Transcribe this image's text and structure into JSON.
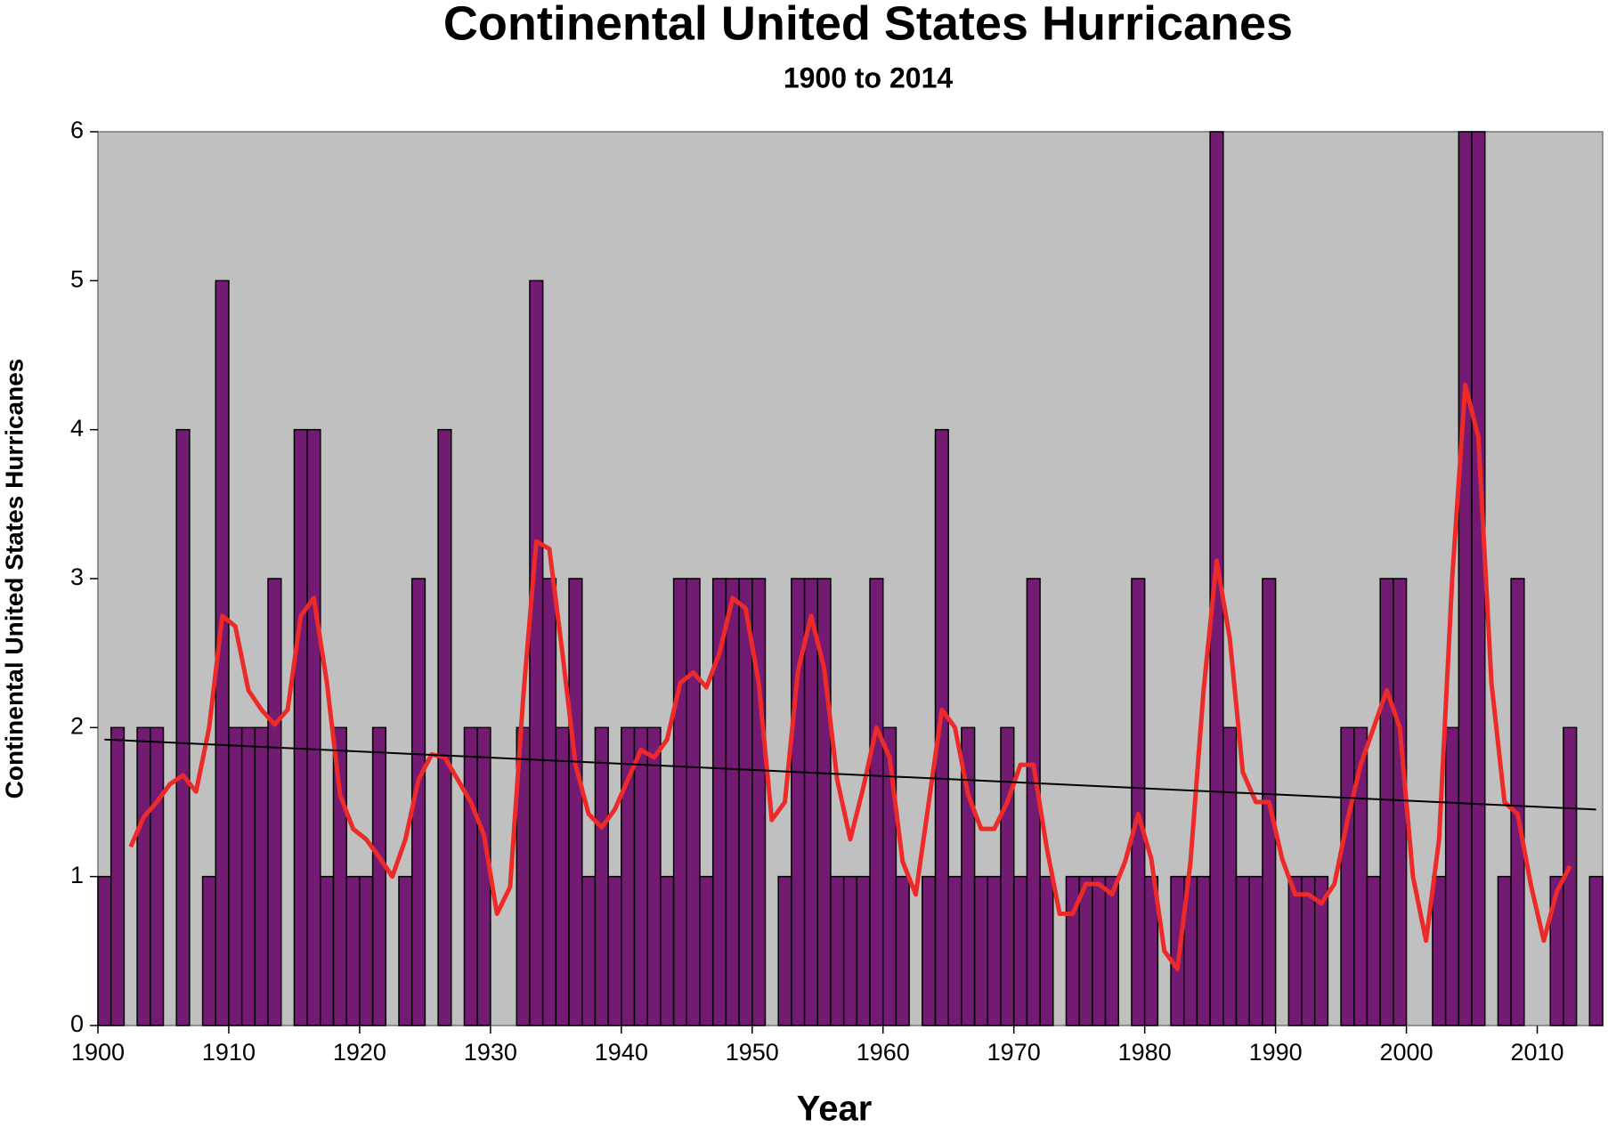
{
  "chart_data": {
    "type": "bar",
    "title": "Continental United States Hurricanes",
    "subtitle": "1900 to 2014",
    "x_label": "Year",
    "y_label": "Continental United States Hurricanes",
    "plot_background": "#c0c0c0",
    "xlim": [
      1900,
      2015
    ],
    "xticks": [
      1900,
      1910,
      1920,
      1930,
      1940,
      1950,
      1960,
      1970,
      1980,
      1990,
      2000,
      2010
    ],
    "ylim": [
      0,
      6
    ],
    "yticks": [
      0,
      1,
      2,
      3,
      4,
      5,
      6
    ],
    "grid": false,
    "x": [
      1900,
      1901,
      1902,
      1903,
      1904,
      1905,
      1906,
      1907,
      1908,
      1909,
      1910,
      1911,
      1912,
      1913,
      1914,
      1915,
      1916,
      1917,
      1918,
      1919,
      1920,
      1921,
      1922,
      1923,
      1924,
      1925,
      1926,
      1927,
      1928,
      1929,
      1930,
      1931,
      1932,
      1933,
      1934,
      1935,
      1936,
      1937,
      1938,
      1939,
      1940,
      1941,
      1942,
      1943,
      1944,
      1945,
      1946,
      1947,
      1948,
      1949,
      1950,
      1951,
      1952,
      1953,
      1954,
      1955,
      1956,
      1957,
      1958,
      1959,
      1960,
      1961,
      1962,
      1963,
      1964,
      1965,
      1966,
      1967,
      1968,
      1969,
      1970,
      1971,
      1972,
      1973,
      1974,
      1975,
      1976,
      1977,
      1978,
      1979,
      1980,
      1981,
      1982,
      1983,
      1984,
      1985,
      1986,
      1987,
      1988,
      1989,
      1990,
      1991,
      1992,
      1993,
      1994,
      1995,
      1996,
      1997,
      1998,
      1999,
      2000,
      2001,
      2002,
      2003,
      2004,
      2005,
      2006,
      2007,
      2008,
      2009,
      2010,
      2011,
      2012,
      2013,
      2014
    ],
    "series": [
      {
        "type": "bar",
        "color": "#731a73",
        "values": [
          1,
          2,
          0,
          2,
          2,
          0,
          4,
          0,
          1,
          5,
          2,
          2,
          2,
          3,
          0,
          4,
          4,
          1,
          2,
          1,
          1,
          2,
          0,
          1,
          3,
          0,
          4,
          0,
          2,
          2,
          0,
          0,
          2,
          5,
          3,
          2,
          3,
          1,
          2,
          1,
          2,
          2,
          2,
          1,
          3,
          3,
          1,
          3,
          3,
          3,
          3,
          0,
          1,
          3,
          3,
          3,
          1,
          1,
          1,
          3,
          2,
          1,
          0,
          1,
          4,
          1,
          2,
          1,
          1,
          2,
          1,
          3,
          1,
          0,
          1,
          1,
          1,
          1,
          0,
          3,
          1,
          0,
          1,
          1,
          1,
          6,
          2,
          1,
          1,
          3,
          0,
          1,
          1,
          1,
          0,
          2,
          2,
          1,
          3,
          3,
          0,
          0,
          1,
          2,
          6,
          6,
          0,
          1,
          3,
          0,
          0,
          1,
          2,
          0,
          1
        ]
      },
      {
        "type": "line",
        "color": "#ec2a2a",
        "values": [
          null,
          null,
          1.2,
          1.4,
          1.5,
          1.62,
          1.68,
          1.57,
          2.0,
          2.75,
          2.68,
          2.25,
          2.12,
          2.02,
          2.12,
          2.75,
          2.87,
          2.3,
          1.55,
          1.32,
          1.25,
          1.13,
          1.0,
          1.25,
          1.65,
          1.82,
          1.8,
          1.65,
          1.5,
          1.28,
          0.75,
          0.93,
          2.2,
          3.25,
          3.2,
          2.5,
          1.75,
          1.42,
          1.33,
          1.45,
          1.65,
          1.85,
          1.8,
          1.92,
          2.3,
          2.37,
          2.27,
          2.5,
          2.87,
          2.8,
          2.3,
          1.38,
          1.5,
          2.38,
          2.75,
          2.4,
          1.65,
          1.25,
          1.6,
          2.0,
          1.8,
          1.1,
          0.88,
          1.5,
          2.12,
          2.0,
          1.55,
          1.32,
          1.32,
          1.5,
          1.75,
          1.75,
          1.2,
          0.75,
          0.75,
          0.95,
          0.95,
          0.88,
          1.1,
          1.42,
          1.12,
          0.5,
          0.38,
          1.1,
          2.25,
          3.12,
          2.6,
          1.7,
          1.5,
          1.5,
          1.12,
          0.88,
          0.88,
          0.82,
          0.95,
          1.38,
          1.75,
          2.0,
          2.25,
          2.0,
          1.0,
          0.57,
          1.25,
          3.0,
          4.3,
          3.95,
          2.3,
          1.5,
          1.42,
          0.95,
          0.57,
          0.9,
          1.07,
          null,
          null
        ]
      }
    ],
    "trendline": {
      "color": "#000000",
      "x": [
        1900,
        2014
      ],
      "values": [
        1.92,
        1.45
      ]
    }
  }
}
